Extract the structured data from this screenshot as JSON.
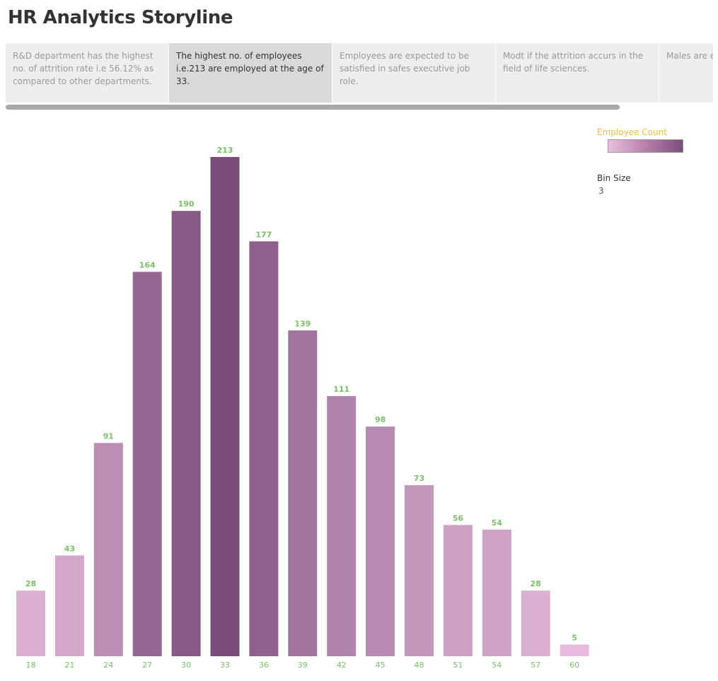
{
  "title": "HR Analytics Storyline",
  "story_points": [
    {
      "text": "R&D department has the highest no. of attrition rate i.e 56.12% as compared to other departments.",
      "active": false
    },
    {
      "text": "The highest no. of employees i.e.213 are employed at the age of 33.",
      "active": true
    },
    {
      "text": "Employees are expected to be satisfied in safes executive job role.",
      "active": false
    },
    {
      "text": "Modt if the attrition accurs in the field of life sciences.",
      "active": false
    },
    {
      "text": "Males are expected to leave the ..",
      "active": false
    }
  ],
  "legend": {
    "title": "Employee Count",
    "title_color": "#f0c040",
    "gradient_colors": [
      "#eabfdf",
      "#7b4d7a"
    ]
  },
  "bin": {
    "label": "Bin Size",
    "value": "3"
  },
  "chart_data": {
    "type": "bar",
    "categories": [
      "18",
      "21",
      "24",
      "27",
      "30",
      "33",
      "36",
      "39",
      "42",
      "45",
      "48",
      "51",
      "54",
      "57",
      "60"
    ],
    "values": [
      28,
      43,
      91,
      164,
      190,
      213,
      177,
      139,
      111,
      98,
      73,
      56,
      54,
      28,
      5
    ],
    "ylim": [
      0,
      213
    ],
    "label_color": "#7ac16a",
    "color_low": "#eabfdf",
    "color_high": "#7b4d7a",
    "grid": false
  }
}
